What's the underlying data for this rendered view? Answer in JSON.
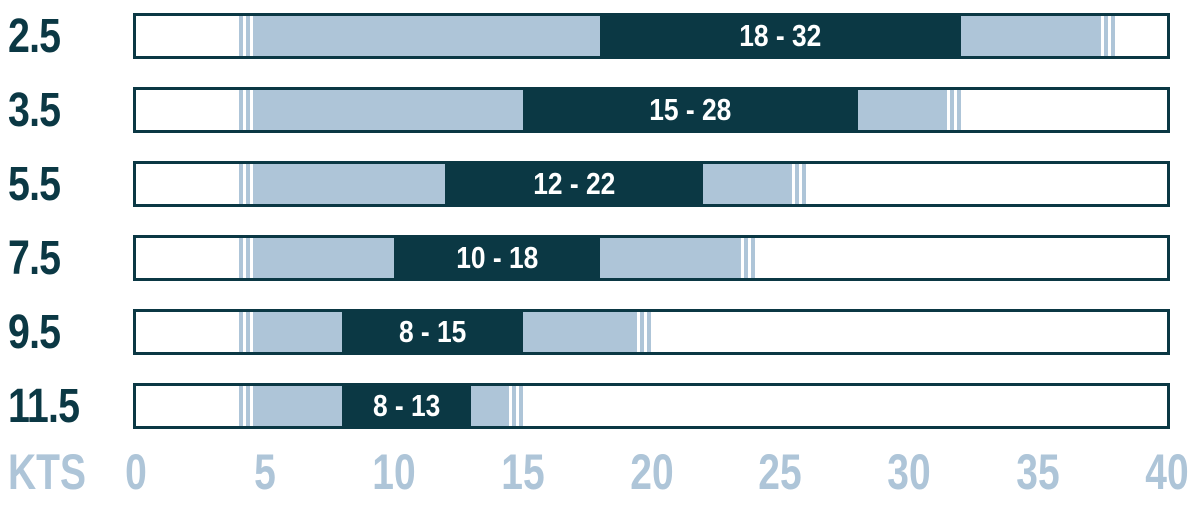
{
  "chart_data": {
    "type": "range-bar",
    "description": "Wind range chart: ideal (dark) and usable (light) wind speed ranges in knots per size",
    "x_axis": {
      "label": "KTS",
      "min": 0,
      "max": 40,
      "ticks": [
        "0",
        "5",
        "10",
        "15",
        "20",
        "25",
        "30",
        "35",
        "40"
      ],
      "tick_values": [
        0,
        5,
        10,
        15,
        20,
        25,
        30,
        35,
        40
      ]
    },
    "rows": [
      {
        "name": "2.5",
        "range_label": "18 - 32",
        "ideal_range": [
          18,
          32
        ],
        "full_range": [
          4,
          38
        ]
      },
      {
        "name": "3.5",
        "range_label": "15 - 28",
        "ideal_range": [
          15,
          28
        ],
        "full_range": [
          4,
          32
        ]
      },
      {
        "name": "5.5",
        "range_label": "12 - 22",
        "ideal_range": [
          12,
          22
        ],
        "full_range": [
          4,
          26
        ]
      },
      {
        "name": "7.5",
        "range_label": "10 - 18",
        "ideal_range": [
          10,
          18
        ],
        "full_range": [
          4,
          24
        ]
      },
      {
        "name": "9.5",
        "range_label": "8 - 15",
        "ideal_range": [
          8,
          15
        ],
        "full_range": [
          4,
          20
        ]
      },
      {
        "name": "11.5",
        "range_label": "8 - 13",
        "ideal_range": [
          8,
          13
        ],
        "full_range": [
          4,
          15
        ]
      }
    ]
  },
  "colors": {
    "dark_navy": "#0b3844",
    "light_blue": "#aec5d8",
    "background": "#ffffff"
  }
}
